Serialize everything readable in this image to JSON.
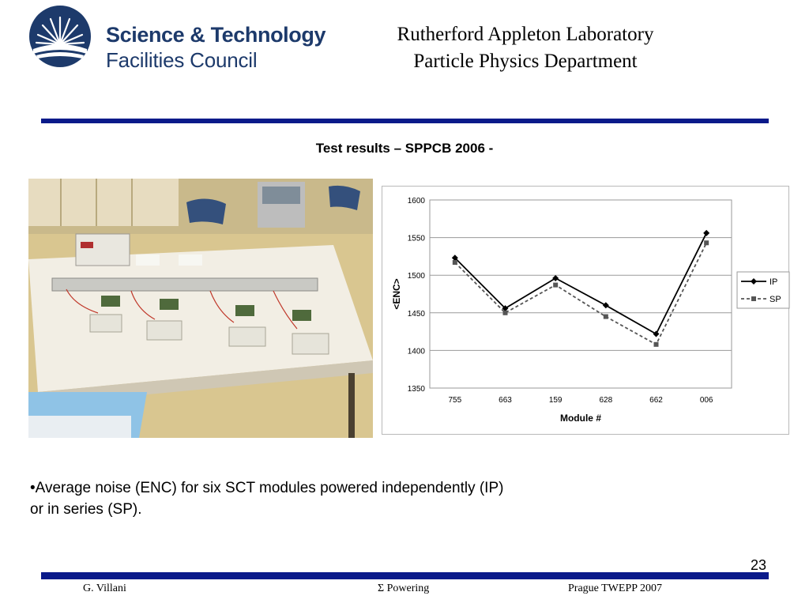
{
  "logo": {
    "icon": "stfc-sunburst-logo",
    "line1": "Science & Technology",
    "line2": "Facilities Council"
  },
  "header": {
    "line1": "Rutherford Appleton Laboratory",
    "line2": "Particle Physics Department"
  },
  "slide": {
    "title": "Test results – SPPCB 2006 -",
    "photo_icon": "lab-setup-photo",
    "body_line1": "•Average noise (ENC) for six SCT modules powered independently (IP)",
    "body_line2": "or in series (SP).",
    "page_number": "23"
  },
  "footer": {
    "author": "G. Villani",
    "topic": "Σ Powering",
    "conference": "Prague TWEPP 2007"
  },
  "chart_data": {
    "type": "line",
    "categories": [
      "755",
      "663",
      "159",
      "628",
      "662",
      "006"
    ],
    "series": [
      {
        "name": "IP",
        "values": [
          1523,
          1456,
          1496,
          1460,
          1422,
          1556
        ],
        "color": "#000000",
        "style": "solid",
        "marker": "diamond"
      },
      {
        "name": "SP",
        "values": [
          1517,
          1450,
          1487,
          1445,
          1408,
          1543
        ],
        "color": "#555555",
        "style": "dashed",
        "marker": "square"
      }
    ],
    "title": "",
    "xlabel": "Module #",
    "ylabel": "<ENC>",
    "ylim": [
      1350,
      1600
    ],
    "yticks": [
      "1350",
      "1400",
      "1450",
      "1500",
      "1550",
      "1600"
    ],
    "grid": true,
    "legend": "right"
  }
}
